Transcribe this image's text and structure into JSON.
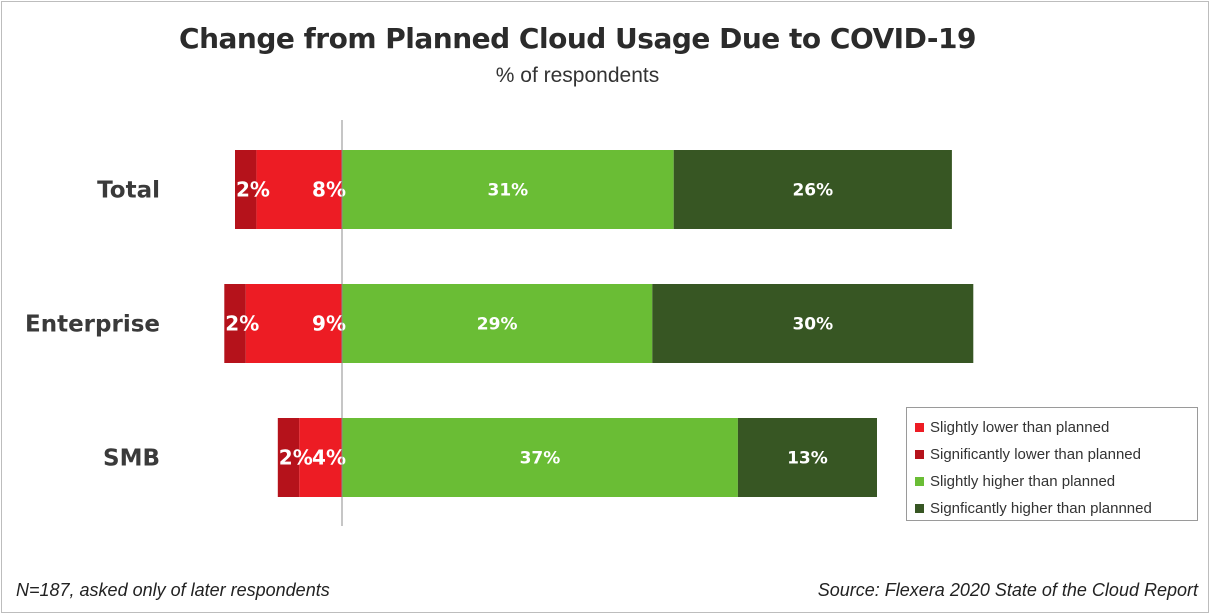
{
  "chart_data": {
    "type": "bar",
    "orientation": "horizontal",
    "stacked": "diverging",
    "title": "Change from Planned Cloud Usage Due to COVID-19",
    "subtitle": "% of respondents",
    "categories": [
      "Total",
      "Enterprise",
      "SMB"
    ],
    "series": [
      {
        "name": "Signficantly higher than plannned",
        "color": "#375623",
        "direction": "positive",
        "values": [
          26,
          30,
          13
        ]
      },
      {
        "name": "Slightly higher than planned",
        "color": "#6ABD35",
        "direction": "positive",
        "values": [
          31,
          29,
          37
        ]
      },
      {
        "name": "Significantly lower than planned",
        "color": "#B5121B",
        "direction": "negative",
        "values": [
          2,
          2,
          2
        ]
      },
      {
        "name": "Slightly lower than planned",
        "color": "#ED1C24",
        "direction": "negative",
        "values": [
          8,
          9,
          4
        ]
      }
    ],
    "legend": {
      "position": "bottom-right",
      "order": [
        "Slightly lower than planned",
        "Significantly lower than planned",
        "Slightly higher than planned",
        "Signficantly higher than plannned"
      ]
    },
    "grid": false
  },
  "footnote": "N=187, asked only of later respondents",
  "source": "Source: Flexera 2020 State of the Cloud Report"
}
